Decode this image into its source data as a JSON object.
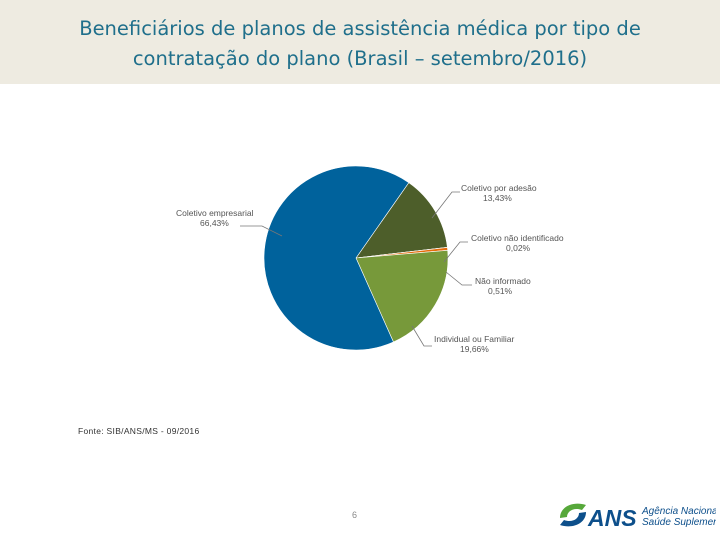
{
  "slide": {
    "title_line1": "Beneficiários de planos de assistência médica por tipo de",
    "title_line2": "contratação do plano (Brasil – setembro/2016)",
    "source": "Fonte: SIB/ANS/MS - 09/2016",
    "page_number": "6"
  },
  "logo": {
    "acronym": "ANS",
    "name_line1": "Agência Nacional de",
    "name_line2": "Saúde Suplementar",
    "colors": {
      "blue": "#0d4f8b",
      "green": "#56a83a"
    }
  },
  "chart_data": {
    "type": "pie",
    "slices": [
      {
        "name": "Coletivo por adesão",
        "value": 13.43,
        "label": "13,43%",
        "color": "#4d5e2a"
      },
      {
        "name": "Coletivo não identificado",
        "value": 0.02,
        "label": "0,02%",
        "color": "#c0504d"
      },
      {
        "name": "Não informado",
        "value": 0.51,
        "label": "0,51%",
        "color": "#e46c0a"
      },
      {
        "name": "Individual ou Familiar",
        "value": 19.66,
        "label": "19,66%",
        "color": "#77993a"
      },
      {
        "name": "Coletivo empresarial",
        "value": 66.43,
        "label": "66,43%",
        "color": "#00629c"
      }
    ]
  }
}
